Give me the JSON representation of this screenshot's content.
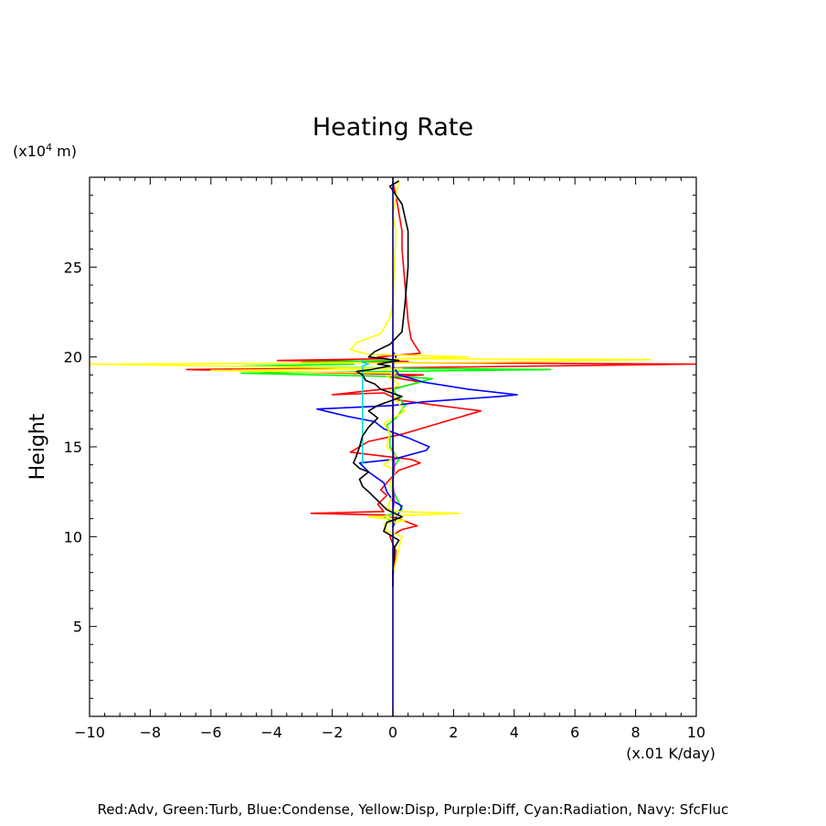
{
  "chart_data": {
    "type": "line",
    "title": "Heating Rate",
    "xlabel": "(x.01 K/day)",
    "ylabel": "Height",
    "yunit": "(x10",
    "yunit_sup": "4",
    "yunit_tail": " m)",
    "xlim": [
      -10,
      10
    ],
    "ylim": [
      0,
      30
    ],
    "xticks": [
      -10,
      -8,
      -6,
      -4,
      -2,
      0,
      2,
      4,
      6,
      8,
      10
    ],
    "xtick_labels": [
      "−10",
      "−8",
      "−6",
      "−4",
      "−2",
      "0",
      "2",
      "4",
      "6",
      "8",
      "10"
    ],
    "yticks": [
      5,
      10,
      15,
      20,
      25
    ],
    "ytick_labels": [
      "5",
      "10",
      "15",
      "20",
      "25"
    ],
    "grid": false,
    "legend_text": "Red:Adv, Green:Turb, Blue:Condense, Yellow:Disp, Purple:Diff, Cyan:Radiation, Navy: SfcFluc",
    "series": [
      {
        "color": "#ff0000",
        "points": [
          [
            0,
            7.8
          ],
          [
            0.1,
            9.2
          ],
          [
            -0.1,
            10
          ],
          [
            0.3,
            10.4
          ],
          [
            0.8,
            10.6
          ],
          [
            0.2,
            11
          ],
          [
            -0.3,
            11.2
          ],
          [
            -2.7,
            11.3
          ],
          [
            -0.3,
            11.4
          ],
          [
            -0.5,
            11.8
          ],
          [
            -0.2,
            12.3
          ],
          [
            -0.4,
            12.6
          ],
          [
            -0.1,
            13.2
          ],
          [
            0.2,
            13.7
          ],
          [
            0.9,
            14.1
          ],
          [
            0.6,
            14.3
          ],
          [
            -1.4,
            14.7
          ],
          [
            -0.8,
            15.3
          ],
          [
            0.3,
            15.7
          ],
          [
            1.3,
            16.2
          ],
          [
            2.9,
            17
          ],
          [
            1.5,
            17.3
          ],
          [
            0.2,
            17.6
          ],
          [
            -0.3,
            18
          ],
          [
            -2.0,
            17.9
          ],
          [
            0.2,
            18.3
          ],
          [
            0.9,
            18.6
          ],
          [
            -0.1,
            18.9
          ],
          [
            1.0,
            19
          ],
          [
            -6.8,
            19.3
          ],
          [
            0.2,
            19.4
          ],
          [
            10,
            19.6
          ],
          [
            -1.0,
            19.7
          ],
          [
            0.5,
            19.75
          ],
          [
            -3.8,
            19.8
          ],
          [
            -0.2,
            19.9
          ],
          [
            -0.5,
            20.0
          ],
          [
            0.9,
            20.2
          ],
          [
            0.6,
            21
          ],
          [
            0.5,
            22
          ],
          [
            0.4,
            24
          ],
          [
            0.3,
            26
          ],
          [
            0.3,
            27
          ],
          [
            0.2,
            28
          ],
          [
            0.1,
            29
          ],
          [
            0,
            29.7
          ]
        ]
      },
      {
        "color": "#00ff00",
        "points": [
          [
            0,
            10.8
          ],
          [
            -0.3,
            11.1
          ],
          [
            0.3,
            11.5
          ],
          [
            0,
            12.6
          ],
          [
            0,
            13.8
          ],
          [
            0.2,
            14.3
          ],
          [
            -0.1,
            15
          ],
          [
            -0.1,
            15.7
          ],
          [
            -0.2,
            16.2
          ],
          [
            0.1,
            16.6
          ],
          [
            0.4,
            17.3
          ],
          [
            0.2,
            17.7
          ],
          [
            0,
            18.2
          ],
          [
            1.3,
            18.8
          ],
          [
            0.3,
            18.9
          ],
          [
            -5.0,
            19.1
          ],
          [
            5.2,
            19.3
          ],
          [
            1.1,
            19.35
          ],
          [
            -5.0,
            19.5
          ],
          [
            -1.3,
            19.6
          ],
          [
            -3.0,
            19.7
          ],
          [
            0,
            19.8
          ],
          [
            0,
            20
          ]
        ]
      },
      {
        "color": "#0000ff",
        "points": [
          [
            0,
            10.5
          ],
          [
            0.1,
            11
          ],
          [
            0.3,
            11.7
          ],
          [
            0,
            12
          ],
          [
            -0.2,
            12.5
          ],
          [
            -0.3,
            13
          ],
          [
            -0.8,
            13.6
          ],
          [
            -1.1,
            14.1
          ],
          [
            0,
            14.3
          ],
          [
            1.1,
            14.8
          ],
          [
            1.2,
            15
          ],
          [
            0.5,
            15.5
          ],
          [
            0,
            15.8
          ],
          [
            -0.3,
            16
          ],
          [
            -0.6,
            16.4
          ],
          [
            -1.5,
            16.7
          ],
          [
            -2.5,
            17.1
          ],
          [
            -1.2,
            17.2
          ],
          [
            0,
            17.3
          ],
          [
            1.0,
            17.5
          ],
          [
            3.5,
            17.8
          ],
          [
            4.1,
            17.9
          ],
          [
            2.5,
            18.2
          ],
          [
            1.0,
            18.6
          ],
          [
            0.2,
            19
          ],
          [
            0,
            19.5
          ],
          [
            0.1,
            20
          ],
          [
            0,
            20.3
          ]
        ]
      },
      {
        "color": "#ffff00",
        "points": [
          [
            0,
            8
          ],
          [
            0.1,
            8.6
          ],
          [
            0.2,
            9.4
          ],
          [
            0.3,
            10
          ],
          [
            -0.2,
            10.3
          ],
          [
            -0.3,
            10.7
          ],
          [
            0.4,
            10.9
          ],
          [
            -0.8,
            11.1
          ],
          [
            2.2,
            11.3
          ],
          [
            0.1,
            11.4
          ],
          [
            -0.2,
            11.6
          ],
          [
            0,
            12.3
          ],
          [
            -0.1,
            12.9
          ],
          [
            0.1,
            13.7
          ],
          [
            -0.3,
            14
          ],
          [
            0.1,
            14.5
          ],
          [
            -0.2,
            15
          ],
          [
            -0.1,
            15.8
          ],
          [
            -0.3,
            16.3
          ],
          [
            0.4,
            17
          ],
          [
            0.1,
            17.6
          ],
          [
            -0.1,
            18.1
          ],
          [
            0.2,
            18.5
          ],
          [
            -0.2,
            18.9
          ],
          [
            0.1,
            19.1
          ],
          [
            -6.0,
            19.25
          ],
          [
            0.3,
            19.35
          ],
          [
            -10,
            19.6
          ],
          [
            3,
            19.7
          ],
          [
            8.5,
            19.85
          ],
          [
            0,
            19.9
          ],
          [
            2.5,
            20.0
          ],
          [
            -0.8,
            20.15
          ],
          [
            -1.4,
            20.4
          ],
          [
            -1.2,
            20.8
          ],
          [
            -0.4,
            21.3
          ],
          [
            -0.1,
            22.2
          ],
          [
            0,
            23
          ],
          [
            0.05,
            25
          ],
          [
            0.1,
            27
          ],
          [
            0,
            28
          ],
          [
            0.2,
            29.8
          ]
        ]
      },
      {
        "color": "#a020f0",
        "points": [
          [
            0,
            11.5
          ],
          [
            0.05,
            12
          ],
          [
            0,
            13
          ],
          [
            0.05,
            14
          ],
          [
            0,
            15
          ],
          [
            0,
            17
          ],
          [
            0,
            19
          ],
          [
            0,
            21
          ]
        ]
      },
      {
        "color": "#00e0e0",
        "points": [
          [
            -1.0,
            14.0
          ],
          [
            -1.0,
            15
          ],
          [
            -1.0,
            16
          ],
          [
            -1.0,
            17
          ],
          [
            -1.0,
            18
          ],
          [
            -1.0,
            19
          ],
          [
            -1.0,
            19.5
          ],
          [
            -0.8,
            19.6
          ],
          [
            -1.0,
            19.7
          ],
          [
            -1.0,
            19.85
          ]
        ]
      },
      {
        "color": "#000000",
        "points": [
          [
            0,
            7.2
          ],
          [
            0,
            8
          ],
          [
            0.05,
            9.4
          ],
          [
            0.2,
            9.8
          ],
          [
            -0.3,
            10.3
          ],
          [
            -0.2,
            10.8
          ],
          [
            0.3,
            11.1
          ],
          [
            -0.2,
            11.5
          ],
          [
            -0.5,
            12
          ],
          [
            -0.8,
            12.5
          ],
          [
            -1.0,
            12.8
          ],
          [
            -1.1,
            13.2
          ],
          [
            -0.8,
            13.6
          ],
          [
            -1.1,
            13.8
          ],
          [
            -1.3,
            14.1
          ],
          [
            -1.2,
            14.5
          ],
          [
            -1.1,
            15
          ],
          [
            -1.0,
            15.6
          ],
          [
            -0.8,
            16.1
          ],
          [
            -0.5,
            16.6
          ],
          [
            -0.8,
            17
          ],
          [
            -0.5,
            17.3
          ],
          [
            0,
            17.6
          ],
          [
            0.3,
            17.8
          ],
          [
            -0.4,
            18.2
          ],
          [
            -0.6,
            18.5
          ],
          [
            -0.9,
            18.7
          ],
          [
            -1.0,
            19
          ],
          [
            -1.2,
            19.2
          ],
          [
            -0.7,
            19.3
          ],
          [
            -0.1,
            19.5
          ],
          [
            -0.5,
            19.6
          ],
          [
            0.2,
            19.8
          ],
          [
            -0.8,
            20.0
          ],
          [
            -0.6,
            20.3
          ],
          [
            -0.1,
            20.7
          ],
          [
            0.3,
            21.4
          ],
          [
            0.4,
            23
          ],
          [
            0.5,
            25
          ],
          [
            0.5,
            27
          ],
          [
            0.3,
            28.5
          ],
          [
            -0.1,
            29.5
          ],
          [
            0.2,
            29.8
          ]
        ]
      },
      {
        "color": "#000080",
        "points": [
          [
            0,
            0
          ],
          [
            0,
            30
          ]
        ]
      }
    ]
  }
}
